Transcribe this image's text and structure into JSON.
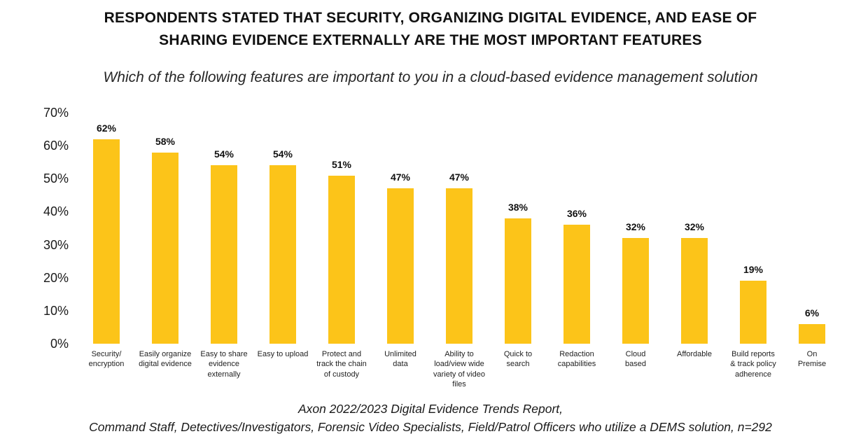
{
  "header": {
    "title": "RESPONDENTS STATED THAT SECURITY, ORGANIZING DIGITAL EVIDENCE, AND EASE OF\nSHARING EVIDENCE EXTERNALLY ARE THE MOST IMPORTANT FEATURES",
    "subtitle": "Which of the following features are important to you in a cloud-based evidence management solution"
  },
  "chart_data": {
    "type": "bar",
    "title": "Which of the following features are important to you in a cloud-based evidence management solution",
    "categories": [
      "Security/\nencryption",
      "Easily organize\ndigital evidence",
      "Easy to share\nevidence\nexternally",
      "Easy to upload",
      "Protect and\ntrack the chain\nof custody",
      "Unlimited\ndata",
      "Ability to\nload/view wide\nvariety of video\nfiles",
      "Quick to\nsearch",
      "Redaction\ncapabilities",
      "Cloud\nbased",
      "Affordable",
      "Build reports\n& track policy\nadherence",
      "On\nPremise"
    ],
    "values": [
      62,
      58,
      54,
      54,
      51,
      47,
      47,
      38,
      36,
      32,
      32,
      19,
      6
    ],
    "value_labels": [
      "62%",
      "58%",
      "54%",
      "54%",
      "51%",
      "47%",
      "47%",
      "38%",
      "36%",
      "32%",
      "32%",
      "19%",
      "6%"
    ],
    "xlabel": "",
    "ylabel": "",
    "ylim": [
      0,
      70
    ],
    "yticks": [
      0,
      10,
      20,
      30,
      40,
      50,
      60,
      70
    ],
    "ytick_suffix": "%",
    "grid": false,
    "legend": false,
    "bar_color": "#FCC419"
  },
  "footer": {
    "line1": "Axon 2022/2023 Digital Evidence Trends Report,",
    "line2": "Command Staff, Detectives/Investigators, Forensic Video Specialists, Field/Patrol Officers who utilize a DEMS solution, n=292"
  }
}
